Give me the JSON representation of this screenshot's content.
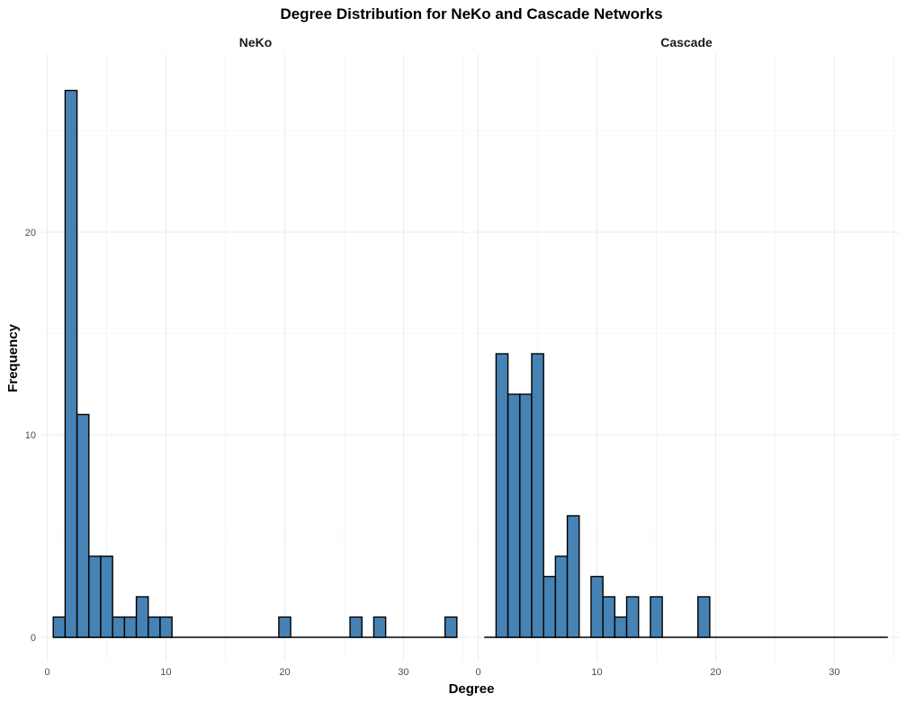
{
  "chart_data": {
    "type": "bar",
    "title": "Degree Distribution for NeKo and Cascade Networks",
    "xlabel": "Degree",
    "ylabel": "Frequency",
    "x_ticks": [
      0,
      10,
      20,
      30
    ],
    "y_ticks": [
      0,
      10,
      20
    ],
    "xlim": [
      -0.5,
      35.5
    ],
    "ylim": [
      -1.2,
      28.8
    ],
    "bin_width": 1,
    "grid": true,
    "legend": "none",
    "colors": {
      "fill": "#4682b4",
      "outline": "#000000"
    },
    "panels": [
      {
        "name": "NeKo",
        "bins": [
          {
            "x": 1,
            "count": 1
          },
          {
            "x": 2,
            "count": 27
          },
          {
            "x": 3,
            "count": 11
          },
          {
            "x": 4,
            "count": 4
          },
          {
            "x": 5,
            "count": 4
          },
          {
            "x": 6,
            "count": 1
          },
          {
            "x": 7,
            "count": 1
          },
          {
            "x": 8,
            "count": 2
          },
          {
            "x": 9,
            "count": 1
          },
          {
            "x": 10,
            "count": 1
          },
          {
            "x": 11,
            "count": 0
          },
          {
            "x": 12,
            "count": 0
          },
          {
            "x": 13,
            "count": 0
          },
          {
            "x": 14,
            "count": 0
          },
          {
            "x": 15,
            "count": 0
          },
          {
            "x": 16,
            "count": 0
          },
          {
            "x": 17,
            "count": 0
          },
          {
            "x": 18,
            "count": 0
          },
          {
            "x": 19,
            "count": 0
          },
          {
            "x": 20,
            "count": 1
          },
          {
            "x": 21,
            "count": 0
          },
          {
            "x": 22,
            "count": 0
          },
          {
            "x": 23,
            "count": 0
          },
          {
            "x": 24,
            "count": 0
          },
          {
            "x": 25,
            "count": 0
          },
          {
            "x": 26,
            "count": 1
          },
          {
            "x": 27,
            "count": 0
          },
          {
            "x": 28,
            "count": 1
          },
          {
            "x": 29,
            "count": 0
          },
          {
            "x": 30,
            "count": 0
          },
          {
            "x": 31,
            "count": 0
          },
          {
            "x": 32,
            "count": 0
          },
          {
            "x": 33,
            "count": 0
          },
          {
            "x": 34,
            "count": 1
          }
        ]
      },
      {
        "name": "Cascade",
        "bins": [
          {
            "x": 1,
            "count": 0
          },
          {
            "x": 2,
            "count": 14
          },
          {
            "x": 3,
            "count": 12
          },
          {
            "x": 4,
            "count": 12
          },
          {
            "x": 5,
            "count": 14
          },
          {
            "x": 6,
            "count": 3
          },
          {
            "x": 7,
            "count": 4
          },
          {
            "x": 8,
            "count": 6
          },
          {
            "x": 9,
            "count": 0
          },
          {
            "x": 10,
            "count": 3
          },
          {
            "x": 11,
            "count": 2
          },
          {
            "x": 12,
            "count": 1
          },
          {
            "x": 13,
            "count": 2
          },
          {
            "x": 14,
            "count": 0
          },
          {
            "x": 15,
            "count": 2
          },
          {
            "x": 16,
            "count": 0
          },
          {
            "x": 17,
            "count": 0
          },
          {
            "x": 18,
            "count": 0
          },
          {
            "x": 19,
            "count": 2
          },
          {
            "x": 20,
            "count": 0
          },
          {
            "x": 21,
            "count": 0
          },
          {
            "x": 22,
            "count": 0
          },
          {
            "x": 23,
            "count": 0
          },
          {
            "x": 24,
            "count": 0
          },
          {
            "x": 25,
            "count": 0
          },
          {
            "x": 26,
            "count": 0
          },
          {
            "x": 27,
            "count": 0
          },
          {
            "x": 28,
            "count": 0
          },
          {
            "x": 29,
            "count": 0
          },
          {
            "x": 30,
            "count": 0
          },
          {
            "x": 31,
            "count": 0
          },
          {
            "x": 32,
            "count": 0
          },
          {
            "x": 33,
            "count": 0
          },
          {
            "x": 34,
            "count": 0
          }
        ]
      }
    ]
  }
}
